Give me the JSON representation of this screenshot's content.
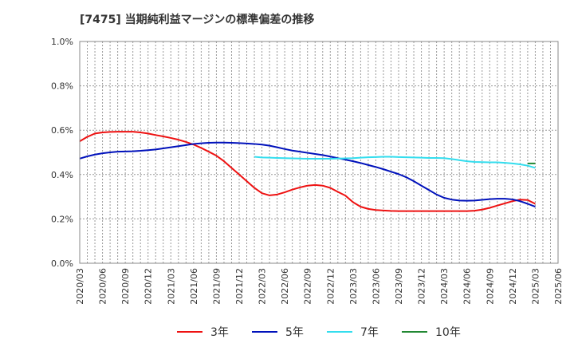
{
  "chart_data": {
    "type": "line",
    "title": "[7475]  当期純利益マージンの標準偏差の推移",
    "ylim": [
      0,
      1.0
    ],
    "y_ticks": [
      "0.0%",
      "0.2%",
      "0.4%",
      "0.6%",
      "0.8%",
      "1.0%"
    ],
    "x_ticks": [
      "2020/03",
      "2020/06",
      "2020/09",
      "2020/12",
      "2021/03",
      "2021/06",
      "2021/09",
      "2021/12",
      "2022/03",
      "2022/06",
      "2022/09",
      "2022/12",
      "2023/03",
      "2023/06",
      "2023/09",
      "2023/12",
      "2024/03",
      "2024/06",
      "2024/09",
      "2024/12",
      "2025/03",
      "2025/06"
    ],
    "grid": true,
    "legend_position": "bottom",
    "series": [
      {
        "name": "3年",
        "color": "#ee1111",
        "points": [
          [
            "2020/03",
            0.55
          ],
          [
            "2020/04",
            0.57
          ],
          [
            "2020/05",
            0.585
          ],
          [
            "2020/06",
            0.59
          ],
          [
            "2020/07",
            0.592
          ],
          [
            "2020/08",
            0.593
          ],
          [
            "2020/09",
            0.593
          ],
          [
            "2020/10",
            0.593
          ],
          [
            "2020/11",
            0.59
          ],
          [
            "2020/12",
            0.585
          ],
          [
            "2021/01",
            0.578
          ],
          [
            "2021/02",
            0.572
          ],
          [
            "2021/03",
            0.565
          ],
          [
            "2021/04",
            0.557
          ],
          [
            "2021/05",
            0.547
          ],
          [
            "2021/06",
            0.535
          ],
          [
            "2021/07",
            0.52
          ],
          [
            "2021/08",
            0.503
          ],
          [
            "2021/09",
            0.485
          ],
          [
            "2021/10",
            0.46
          ],
          [
            "2021/11",
            0.43
          ],
          [
            "2021/12",
            0.4
          ],
          [
            "2022/01",
            0.37
          ],
          [
            "2022/02",
            0.34
          ],
          [
            "2022/03",
            0.316
          ],
          [
            "2022/04",
            0.306
          ],
          [
            "2022/05",
            0.31
          ],
          [
            "2022/06",
            0.32
          ],
          [
            "2022/07",
            0.332
          ],
          [
            "2022/08",
            0.342
          ],
          [
            "2022/09",
            0.35
          ],
          [
            "2022/10",
            0.353
          ],
          [
            "2022/11",
            0.35
          ],
          [
            "2022/12",
            0.34
          ],
          [
            "2023/01",
            0.322
          ],
          [
            "2023/02",
            0.305
          ],
          [
            "2023/03",
            0.275
          ],
          [
            "2023/04",
            0.255
          ],
          [
            "2023/05",
            0.245
          ],
          [
            "2023/06",
            0.24
          ],
          [
            "2023/07",
            0.238
          ],
          [
            "2023/08",
            0.236
          ],
          [
            "2023/09",
            0.235
          ],
          [
            "2023/10",
            0.235
          ],
          [
            "2023/11",
            0.235
          ],
          [
            "2023/12",
            0.235
          ],
          [
            "2024/01",
            0.235
          ],
          [
            "2024/02",
            0.235
          ],
          [
            "2024/03",
            0.235
          ],
          [
            "2024/04",
            0.235
          ],
          [
            "2024/05",
            0.235
          ],
          [
            "2024/06",
            0.235
          ],
          [
            "2024/07",
            0.237
          ],
          [
            "2024/08",
            0.242
          ],
          [
            "2024/09",
            0.25
          ],
          [
            "2024/10",
            0.26
          ],
          [
            "2024/11",
            0.27
          ],
          [
            "2024/12",
            0.28
          ],
          [
            "2025/01",
            0.287
          ],
          [
            "2025/02",
            0.285
          ],
          [
            "2025/03",
            0.268
          ]
        ]
      },
      {
        "name": "5年",
        "color": "#0011bb",
        "points": [
          [
            "2020/03",
            0.472
          ],
          [
            "2020/04",
            0.482
          ],
          [
            "2020/05",
            0.49
          ],
          [
            "2020/06",
            0.496
          ],
          [
            "2020/07",
            0.5
          ],
          [
            "2020/08",
            0.503
          ],
          [
            "2020/09",
            0.504
          ],
          [
            "2020/10",
            0.505
          ],
          [
            "2020/11",
            0.507
          ],
          [
            "2020/12",
            0.51
          ],
          [
            "2021/01",
            0.513
          ],
          [
            "2021/02",
            0.518
          ],
          [
            "2021/03",
            0.523
          ],
          [
            "2021/04",
            0.528
          ],
          [
            "2021/05",
            0.533
          ],
          [
            "2021/06",
            0.538
          ],
          [
            "2021/07",
            0.541
          ],
          [
            "2021/08",
            0.543
          ],
          [
            "2021/09",
            0.544
          ],
          [
            "2021/10",
            0.544
          ],
          [
            "2021/11",
            0.543
          ],
          [
            "2021/12",
            0.542
          ],
          [
            "2022/01",
            0.54
          ],
          [
            "2022/02",
            0.538
          ],
          [
            "2022/03",
            0.535
          ],
          [
            "2022/04",
            0.53
          ],
          [
            "2022/05",
            0.523
          ],
          [
            "2022/06",
            0.515
          ],
          [
            "2022/07",
            0.508
          ],
          [
            "2022/08",
            0.503
          ],
          [
            "2022/09",
            0.498
          ],
          [
            "2022/10",
            0.493
          ],
          [
            "2022/11",
            0.488
          ],
          [
            "2022/12",
            0.481
          ],
          [
            "2023/01",
            0.474
          ],
          [
            "2023/02",
            0.467
          ],
          [
            "2023/03",
            0.46
          ],
          [
            "2023/04",
            0.452
          ],
          [
            "2023/05",
            0.443
          ],
          [
            "2023/06",
            0.434
          ],
          [
            "2023/07",
            0.424
          ],
          [
            "2023/08",
            0.413
          ],
          [
            "2023/09",
            0.402
          ],
          [
            "2023/10",
            0.388
          ],
          [
            "2023/11",
            0.37
          ],
          [
            "2023/12",
            0.35
          ],
          [
            "2024/01",
            0.33
          ],
          [
            "2024/02",
            0.31
          ],
          [
            "2024/03",
            0.295
          ],
          [
            "2024/04",
            0.287
          ],
          [
            "2024/05",
            0.283
          ],
          [
            "2024/06",
            0.282
          ],
          [
            "2024/07",
            0.283
          ],
          [
            "2024/08",
            0.286
          ],
          [
            "2024/09",
            0.289
          ],
          [
            "2024/10",
            0.291
          ],
          [
            "2024/11",
            0.291
          ],
          [
            "2024/12",
            0.288
          ],
          [
            "2025/01",
            0.28
          ],
          [
            "2025/02",
            0.268
          ],
          [
            "2025/03",
            0.255
          ]
        ]
      },
      {
        "name": "7年",
        "color": "#33ddee",
        "points": [
          [
            "2022/02",
            0.48
          ],
          [
            "2022/03",
            0.477
          ],
          [
            "2022/04",
            0.476
          ],
          [
            "2022/05",
            0.475
          ],
          [
            "2022/06",
            0.474
          ],
          [
            "2022/07",
            0.473
          ],
          [
            "2022/08",
            0.472
          ],
          [
            "2022/09",
            0.471
          ],
          [
            "2022/10",
            0.471
          ],
          [
            "2022/11",
            0.471
          ],
          [
            "2022/12",
            0.471
          ],
          [
            "2023/01",
            0.472
          ],
          [
            "2023/02",
            0.473
          ],
          [
            "2023/03",
            0.474
          ],
          [
            "2023/04",
            0.476
          ],
          [
            "2023/05",
            0.478
          ],
          [
            "2023/06",
            0.479
          ],
          [
            "2023/07",
            0.48
          ],
          [
            "2023/08",
            0.48
          ],
          [
            "2023/09",
            0.479
          ],
          [
            "2023/10",
            0.478
          ],
          [
            "2023/11",
            0.477
          ],
          [
            "2023/12",
            0.476
          ],
          [
            "2024/01",
            0.475
          ],
          [
            "2024/02",
            0.475
          ],
          [
            "2024/03",
            0.474
          ],
          [
            "2024/04",
            0.47
          ],
          [
            "2024/05",
            0.465
          ],
          [
            "2024/06",
            0.46
          ],
          [
            "2024/07",
            0.457
          ],
          [
            "2024/08",
            0.456
          ],
          [
            "2024/09",
            0.455
          ],
          [
            "2024/10",
            0.455
          ],
          [
            "2024/11",
            0.453
          ],
          [
            "2024/12",
            0.45
          ],
          [
            "2025/01",
            0.446
          ],
          [
            "2025/02",
            0.44
          ],
          [
            "2025/03",
            0.43
          ]
        ]
      },
      {
        "name": "10年",
        "color": "#228833",
        "points": [
          [
            "2025/02",
            0.45
          ],
          [
            "2025/03",
            0.45
          ]
        ]
      }
    ]
  }
}
